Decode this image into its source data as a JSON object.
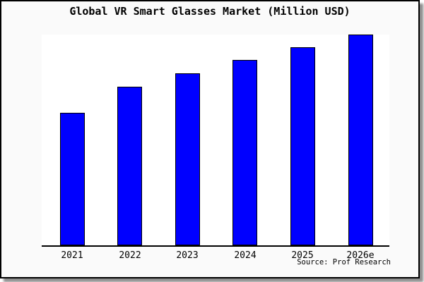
{
  "figure": {
    "title": "Global VR Smart Glasses Market (Million USD)",
    "source_note": "Source: Prof Research",
    "background_color": "#fafafa",
    "plot_background_color": "#ffffff",
    "bar_fill_color": "#0000ff",
    "bar_border_color": "#000000",
    "frame_border_color": "#000000",
    "shadow_color": "#8f8f8f"
  },
  "chart_data": {
    "type": "bar",
    "title": "Global VR Smart Glasses Market (Million USD)",
    "categories": [
      "2021",
      "2022",
      "2023",
      "2024",
      "2025",
      "2026e"
    ],
    "values": [
      62.9,
      75.3,
      81.6,
      88.0,
      94.0,
      100.0
    ],
    "values_note": "relative bar heights as % of tallest bar; no y-axis scale, gridlines or data labels are shown in the image",
    "xlabel": "",
    "ylabel": "",
    "ylim": [
      0,
      100
    ],
    "grid": false,
    "legend": false,
    "source": "Source: Prof Research"
  }
}
